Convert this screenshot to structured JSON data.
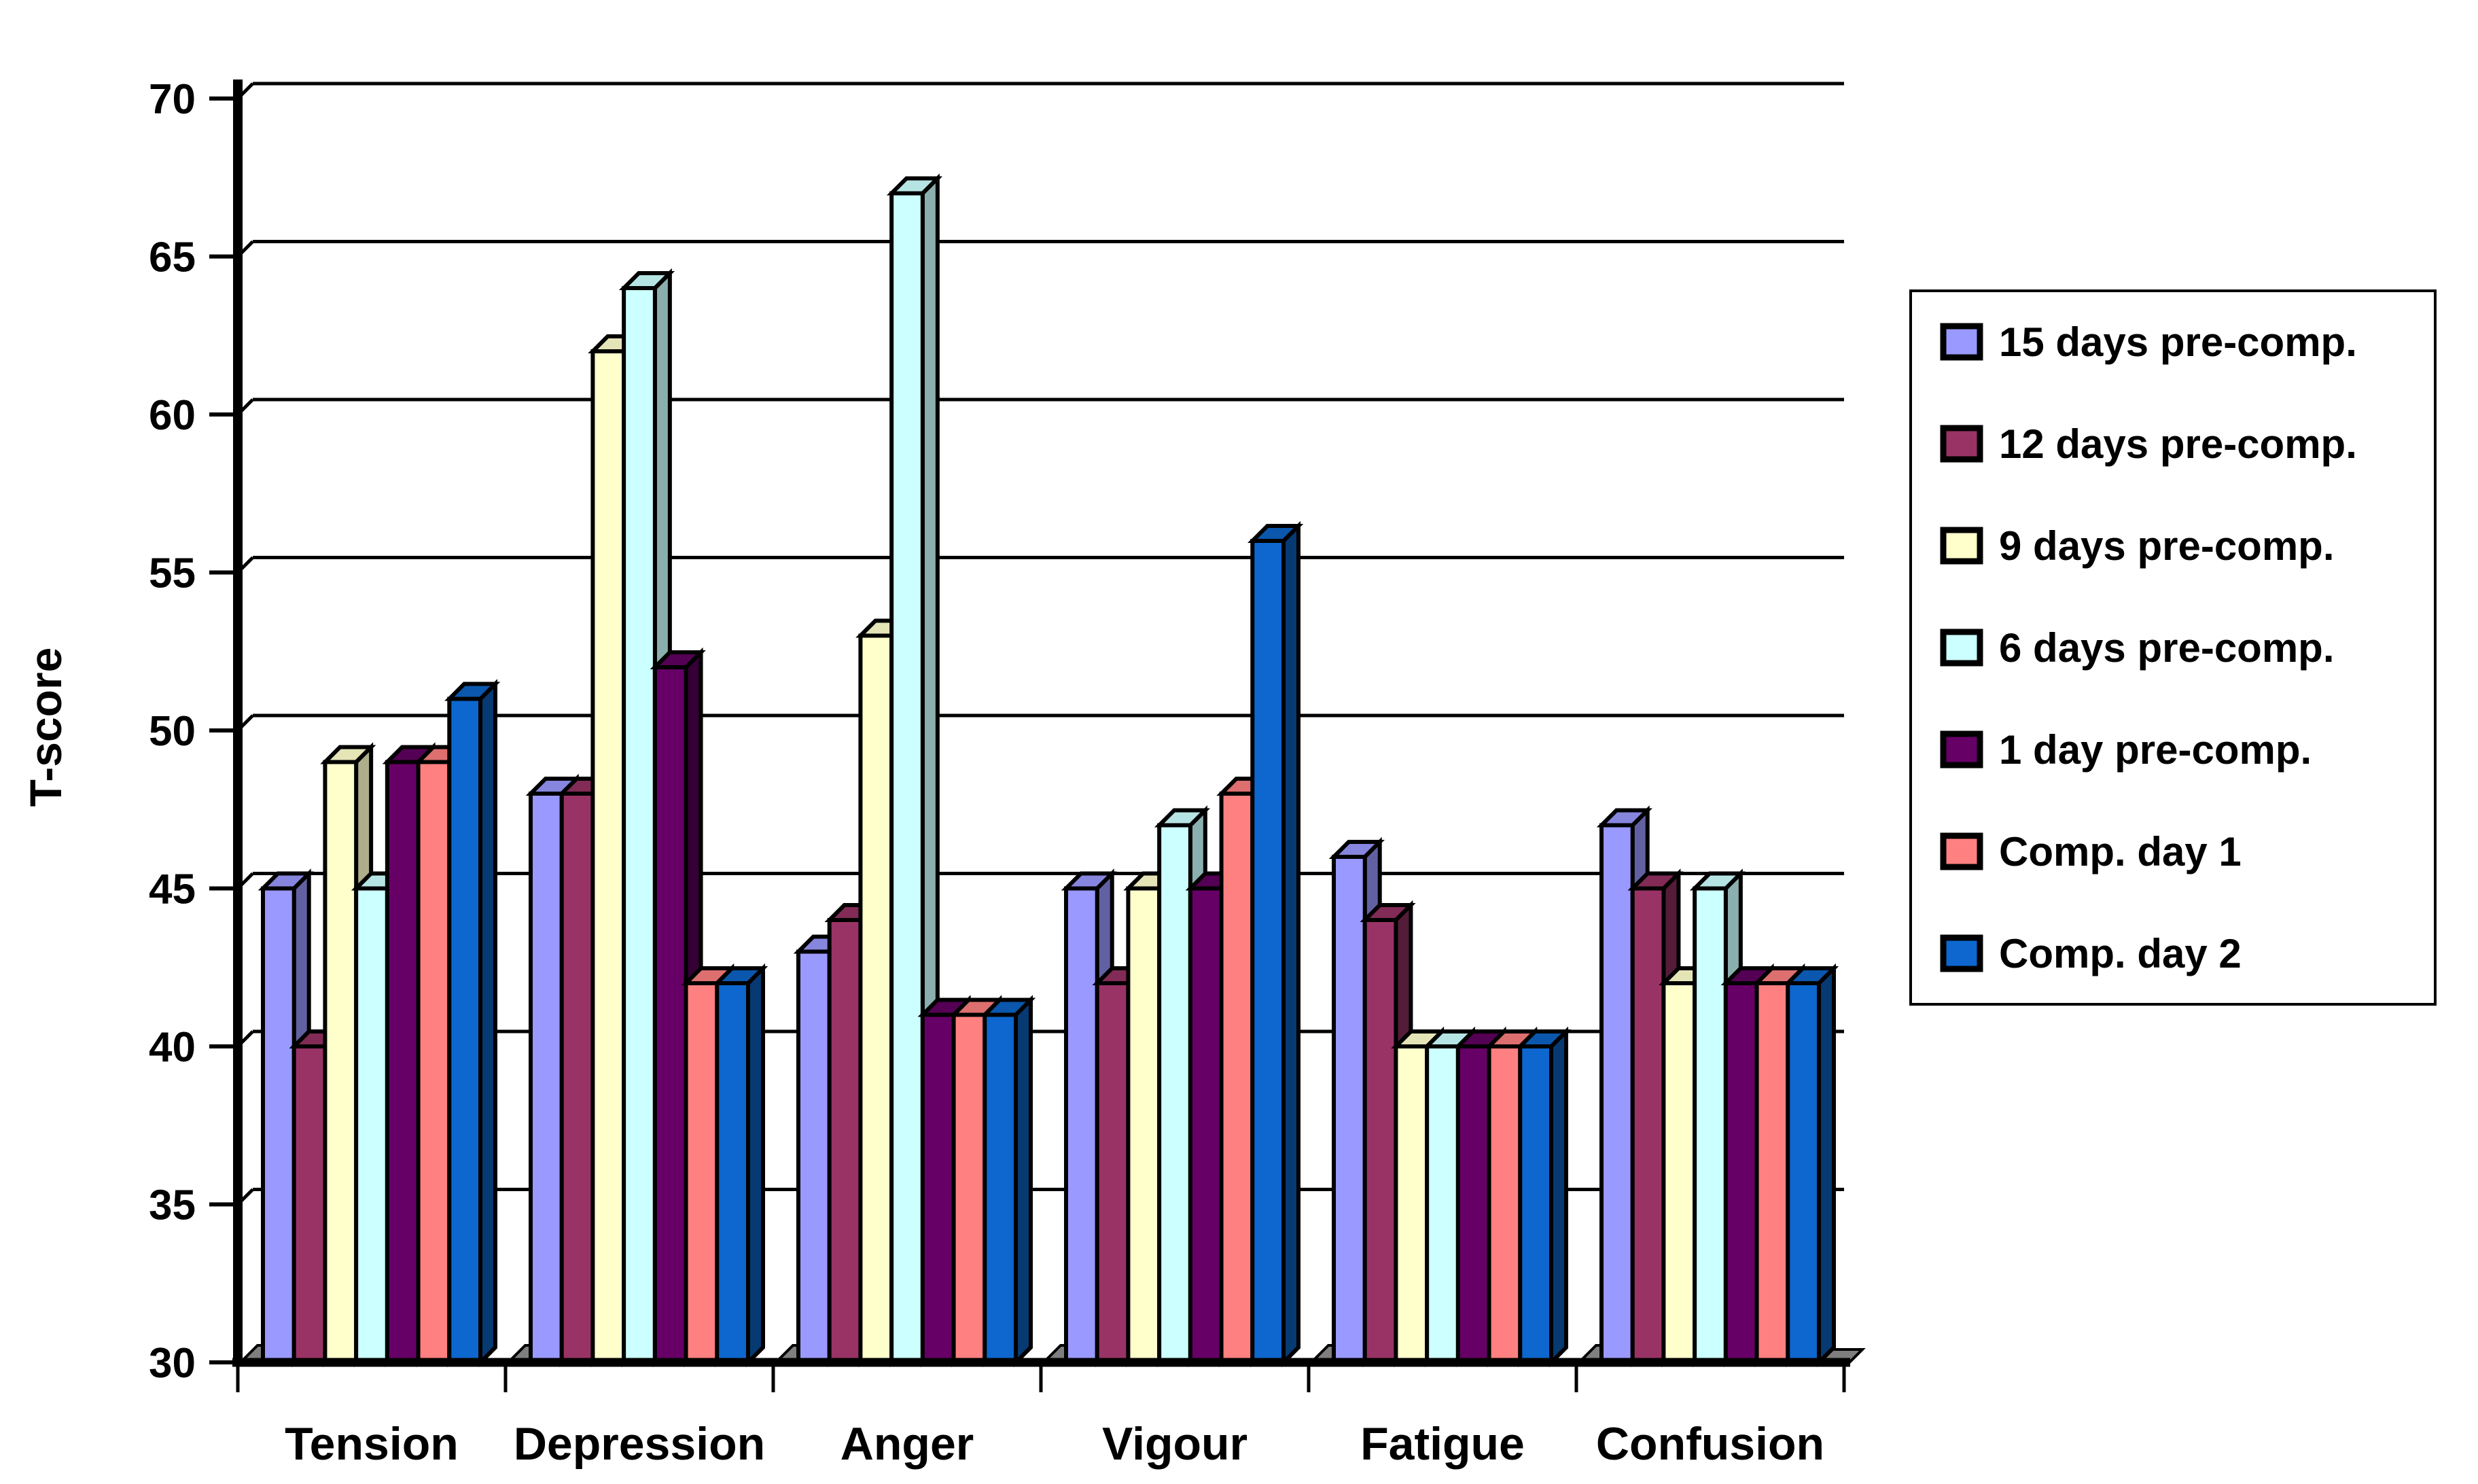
{
  "chart_data": {
    "type": "bar",
    "variant": "3d-clustered-column",
    "title": "",
    "xlabel": "",
    "ylabel": "T-score",
    "ylim": [
      30,
      70
    ],
    "yticks": [
      30,
      35,
      40,
      45,
      50,
      55,
      60,
      65,
      70
    ],
    "grid": true,
    "legend_position": "right",
    "categories": [
      "Tension",
      "Depression",
      "Anger",
      "Vigour",
      "Fatigue",
      "Confusion"
    ],
    "series": [
      {
        "name": "15 days pre-comp.",
        "color": "#9999FF",
        "values": [
          45,
          48,
          43,
          45,
          46,
          47
        ]
      },
      {
        "name": "12 days pre-comp.",
        "color": "#993366",
        "values": [
          40,
          48,
          44,
          42,
          44,
          45
        ]
      },
      {
        "name": "9 days pre-comp.",
        "color": "#FFFFCC",
        "values": [
          49,
          62,
          53,
          45,
          40,
          42
        ]
      },
      {
        "name": "6 days pre-comp.",
        "color": "#CCFFFF",
        "values": [
          45,
          64,
          67,
          47,
          40,
          45
        ]
      },
      {
        "name": "1 day pre-comp.",
        "color": "#660066",
        "values": [
          49,
          52,
          41,
          45,
          40,
          42
        ]
      },
      {
        "name": "Comp. day 1",
        "color": "#FF8080",
        "values": [
          49,
          42,
          41,
          48,
          40,
          42
        ]
      },
      {
        "name": "Comp. day 2",
        "color": "#0D67CE",
        "values": [
          51,
          42,
          41,
          56,
          40,
          42
        ]
      }
    ]
  },
  "colors": {
    "background": "#FFFFFF",
    "outline": "#000000",
    "gridline": "#000000",
    "floor": "#7F7F7F",
    "legend_border": "#000000"
  }
}
